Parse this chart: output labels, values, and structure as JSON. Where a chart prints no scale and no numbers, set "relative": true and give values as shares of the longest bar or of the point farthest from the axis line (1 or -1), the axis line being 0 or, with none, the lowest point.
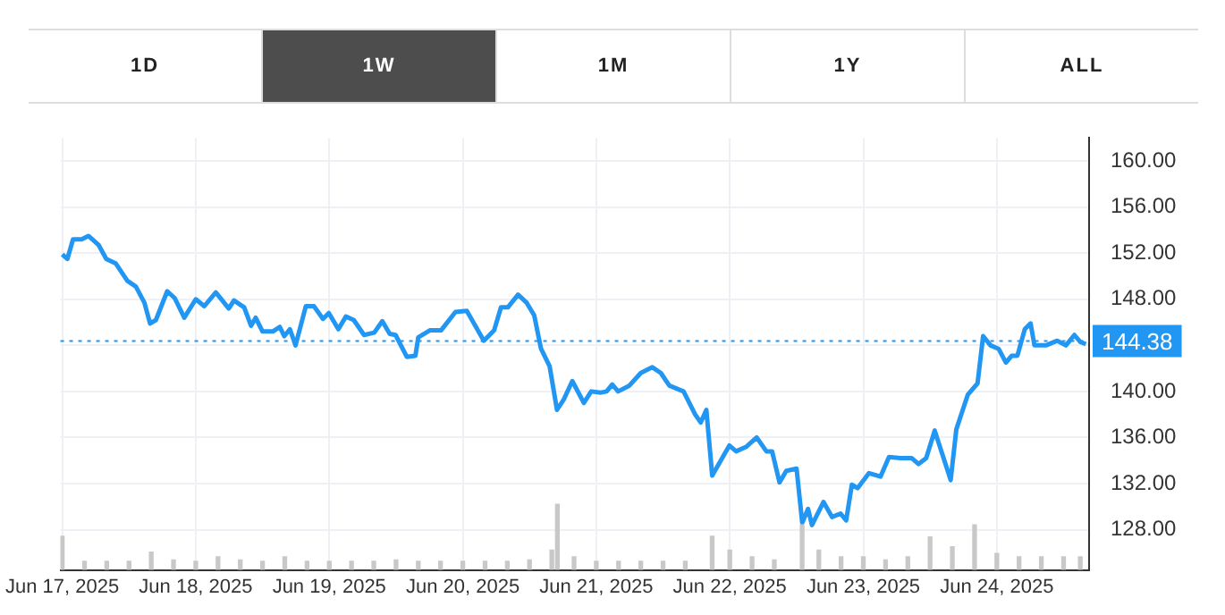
{
  "chart_data": [
    {
      "type": "line",
      "annotations": [
        "1D",
        "1W",
        "1M",
        "1Y",
        "ALL"
      ],
      "xlim": [
        "2025-06-16T23:40",
        "2025-06-24T16:35"
      ],
      "xticks": [
        {
          "value": "2025-06-17",
          "label": "Jun 17, 2025"
        },
        {
          "value": "2025-06-18",
          "label": "Jun 18, 2025"
        },
        {
          "value": "2025-06-19",
          "label": "Jun 19, 2025"
        },
        {
          "value": "2025-06-20",
          "label": "Jun 20, 2025"
        },
        {
          "value": "2025-06-21",
          "label": "Jun 21, 2025"
        },
        {
          "value": "2025-06-22",
          "label": "Jun 22, 2025"
        },
        {
          "value": "2025-06-23",
          "label": "Jun 23, 2025"
        },
        {
          "value": "2025-06-24",
          "label": "Jun 24, 2025"
        }
      ],
      "ylim": [
        124.5,
        162
      ],
      "yticks": [
        {
          "value": 128,
          "label": "128.00"
        },
        {
          "value": 132,
          "label": "132.00"
        },
        {
          "value": 136,
          "label": "136.00"
        },
        {
          "value": 140,
          "label": "140.00"
        },
        {
          "value": 144,
          "label": null
        },
        {
          "value": 148,
          "label": "148.00"
        },
        {
          "value": 152,
          "label": "152.00"
        },
        {
          "value": 156,
          "label": "156.00"
        },
        {
          "value": 160,
          "label": "160.00"
        }
      ],
      "grid": true,
      "legend": false,
      "marker": "none",
      "line_style": "solid",
      "ref_lines": [
        {
          "axis": "y",
          "value": 144.38,
          "label": "144.38",
          "color": "#2196f3",
          "line_style": "dotted"
        }
      ],
      "x": [
        "2025-06-17T00:00",
        "2025-06-17T00:55",
        "2025-06-17T01:56",
        "2025-06-17T03:29",
        "2025-06-17T04:42",
        "2025-06-17T06:33",
        "2025-06-17T07:55",
        "2025-06-17T09:38",
        "2025-06-17T11:42",
        "2025-06-17T13:14",
        "2025-06-17T14:46",
        "2025-06-17T15:47",
        "2025-06-17T16:50",
        "2025-06-17T18:52",
        "2025-06-17T20:13",
        "2025-06-17T21:56",
        "2025-06-18T00:00",
        "2025-06-18T01:32",
        "2025-06-18T03:36",
        "2025-06-18T05:56",
        "2025-06-18T06:52",
        "2025-06-18T08:42",
        "2025-06-18T09:56",
        "2025-06-18T10:46",
        "2025-06-18T12:00",
        "2025-06-18T13:51",
        "2025-06-18T15:05",
        "2025-06-18T15:55",
        "2025-06-18T16:55",
        "2025-06-18T17:56",
        "2025-06-18T19:47",
        "2025-06-18T21:14",
        "2025-06-18T22:52",
        "2025-06-18T23:55",
        "2025-06-19T01:38",
        "2025-06-19T02:59",
        "2025-06-19T04:24",
        "2025-06-19T06:15",
        "2025-06-19T08:05",
        "2025-06-19T09:32",
        "2025-06-19T10:52",
        "2025-06-19T11:55",
        "2025-06-19T13:56",
        "2025-06-19T15:29",
        "2025-06-19T16:00",
        "2025-06-19T18:04",
        "2025-06-19T20:05",
        "2025-06-19T22:41",
        "2025-06-20T00:43",
        "2025-06-20T02:15",
        "2025-06-20T03:47",
        "2025-06-20T05:38",
        "2025-06-20T06:52",
        "2025-06-20T08:06",
        "2025-06-20T09:56",
        "2025-06-20T11:29",
        "2025-06-20T12:50",
        "2025-06-20T14:04",
        "2025-06-20T15:36",
        "2025-06-20T16:56",
        "2025-06-20T18:09",
        "2025-06-20T19:41",
        "2025-06-20T21:46",
        "2025-06-20T23:05",
        "2025-06-21T00:50",
        "2025-06-21T01:51",
        "2025-06-21T02:52",
        "2025-06-21T03:55",
        "2025-06-21T05:56",
        "2025-06-21T08:00",
        "2025-06-21T10:04",
        "2025-06-21T11:36",
        "2025-06-21T13:08",
        "2025-06-21T15:41",
        "2025-06-21T17:46",
        "2025-06-21T18:46",
        "2025-06-21T19:47",
        "2025-06-21T20:50",
        "2025-06-21T23:55",
        "2025-06-22T01:08",
        "2025-06-22T02:59",
        "2025-06-22T04:50",
        "2025-06-22T06:34",
        "2025-06-22T07:36",
        "2025-06-22T08:56",
        "2025-06-22T10:09",
        "2025-06-22T12:00",
        "2025-06-22T13:01",
        "2025-06-22T14:04",
        "2025-06-22T14:46",
        "2025-06-22T16:50",
        "2025-06-22T18:22",
        "2025-06-22T19:55",
        "2025-06-22T20:55",
        "2025-06-22T21:56",
        "2025-06-22T22:59",
        "2025-06-23T01:01",
        "2025-06-23T03:05",
        "2025-06-23T04:37",
        "2025-06-23T06:41",
        "2025-06-23T08:43",
        "2025-06-23T09:56",
        "2025-06-23T11:18",
        "2025-06-23T12:50",
        "2025-06-23T14:22",
        "2025-06-23T15:42",
        "2025-06-23T16:43",
        "2025-06-23T18:46",
        "2025-06-23T20:32",
        "2025-06-23T21:32",
        "2025-06-23T22:52",
        "2025-06-24T00:19",
        "2025-06-24T01:38",
        "2025-06-24T02:41",
        "2025-06-24T03:42",
        "2025-06-24T05:01",
        "2025-06-24T06:04",
        "2025-06-24T06:46",
        "2025-06-24T08:50",
        "2025-06-24T10:52",
        "2025-06-24T12:25",
        "2025-06-24T13:56",
        "2025-06-24T14:59",
        "2025-06-24T16:00"
      ],
      "series": [
        {
          "color": "#2196f3",
          "values": [
            151.9,
            151.5,
            153.2,
            153.2,
            153.5,
            152.7,
            151.5,
            151.1,
            149.6,
            149.1,
            147.7,
            145.9,
            146.2,
            148.7,
            148.1,
            146.4,
            148.0,
            147.4,
            148.6,
            147.2,
            147.9,
            147.3,
            145.7,
            146.4,
            145.2,
            145.2,
            145.6,
            144.8,
            145.4,
            144.0,
            147.4,
            147.4,
            146.3,
            146.8,
            145.4,
            146.5,
            146.2,
            144.9,
            145.1,
            146.1,
            145.0,
            144.9,
            143.0,
            143.1,
            144.7,
            145.3,
            145.3,
            146.9,
            147.0,
            145.7,
            144.4,
            145.3,
            147.3,
            147.3,
            148.4,
            147.7,
            146.6,
            143.7,
            142.2,
            138.4,
            139.3,
            140.9,
            139.0,
            140.0,
            139.9,
            140.0,
            140.6,
            140.0,
            140.5,
            141.6,
            142.1,
            141.6,
            140.5,
            140.0,
            138.0,
            137.3,
            138.4,
            132.7,
            135.3,
            134.8,
            135.2,
            136.0,
            134.8,
            134.8,
            132.1,
            133.1,
            133.3,
            128.6,
            129.8,
            128.4,
            130.4,
            129.1,
            129.4,
            128.8,
            131.9,
            131.6,
            132.9,
            132.6,
            134.3,
            134.2,
            134.2,
            133.7,
            134.2,
            136.6,
            134.3,
            132.3,
            136.7,
            139.7,
            140.7,
            144.8,
            144.0,
            143.7,
            142.5,
            143.1,
            143.1,
            145.4,
            145.9,
            144.0,
            144.0,
            144.4,
            144.0,
            144.9,
            144.3,
            144.1
          ]
        }
      ]
    },
    {
      "type": "bar",
      "relative": true,
      "color": "#c8c8c8",
      "xlim": [
        "2025-06-16T23:40",
        "2025-06-24T16:35"
      ],
      "x": [
        "2025-06-17T00:00",
        "2025-06-17T04:00",
        "2025-06-17T08:00",
        "2025-06-17T12:00",
        "2025-06-17T16:00",
        "2025-06-17T20:00",
        "2025-06-18T00:00",
        "2025-06-18T04:00",
        "2025-06-18T08:00",
        "2025-06-18T12:00",
        "2025-06-18T16:00",
        "2025-06-18T20:00",
        "2025-06-19T00:00",
        "2025-06-19T04:00",
        "2025-06-19T08:00",
        "2025-06-19T12:00",
        "2025-06-19T16:00",
        "2025-06-19T20:00",
        "2025-06-20T00:00",
        "2025-06-20T04:00",
        "2025-06-20T08:00",
        "2025-06-20T12:00",
        "2025-06-20T16:00",
        "2025-06-20T17:00",
        "2025-06-20T20:00",
        "2025-06-21T00:00",
        "2025-06-21T04:00",
        "2025-06-21T08:00",
        "2025-06-21T12:00",
        "2025-06-21T16:00",
        "2025-06-21T20:50",
        "2025-06-22T00:00",
        "2025-06-22T04:00",
        "2025-06-22T08:00",
        "2025-06-22T13:00",
        "2025-06-22T16:00",
        "2025-06-22T20:00",
        "2025-06-23T00:00",
        "2025-06-23T04:00",
        "2025-06-23T08:00",
        "2025-06-23T12:00",
        "2025-06-23T16:00",
        "2025-06-23T20:00",
        "2025-06-24T00:00",
        "2025-06-24T04:00",
        "2025-06-24T08:00",
        "2025-06-24T12:00",
        "2025-06-24T15:00"
      ],
      "values": [
        0.51,
        0.13,
        0.13,
        0.13,
        0.27,
        0.15,
        0.13,
        0.2,
        0.15,
        0.13,
        0.2,
        0.13,
        0.13,
        0.13,
        0.13,
        0.15,
        0.13,
        0.13,
        0.13,
        0.13,
        0.13,
        0.15,
        0.3,
        1,
        0.2,
        0.13,
        0.13,
        0.13,
        0.13,
        0.13,
        0.51,
        0.3,
        0.2,
        0.15,
        0.68,
        0.3,
        0.2,
        0.2,
        0.15,
        0.2,
        0.5,
        0.35,
        0.68,
        0.25,
        0.2,
        0.2,
        0.2,
        0.2
      ]
    }
  ]
}
